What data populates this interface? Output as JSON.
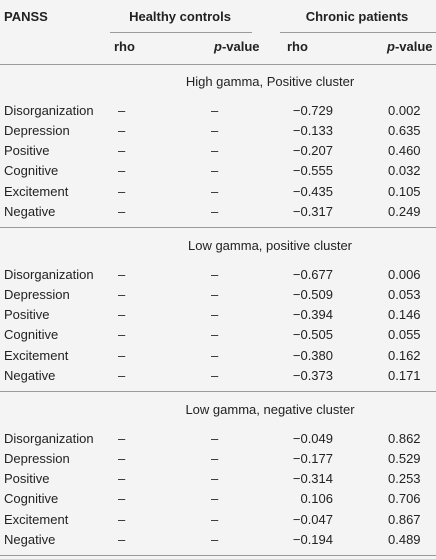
{
  "header": {
    "col0": "PANSS",
    "group1": "Healthy controls",
    "group2": "Chronic patients",
    "rho": "rho",
    "p_value": [
      "p",
      "-value"
    ]
  },
  "sections": [
    {
      "title": "High gamma, Positive cluster",
      "rows": [
        [
          "Disorganization",
          "–",
          "–",
          "−0.729",
          "0.002"
        ],
        [
          "Depression",
          "–",
          "–",
          "−0.133",
          "0.635"
        ],
        [
          "Positive",
          "–",
          "–",
          "−0.207",
          "0.460"
        ],
        [
          "Cognitive",
          "–",
          "–",
          "−0.555",
          "0.032"
        ],
        [
          "Excitement",
          "–",
          "–",
          "−0.435",
          "0.105"
        ],
        [
          "Negative",
          "–",
          "–",
          "−0.317",
          "0.249"
        ]
      ]
    },
    {
      "title": "Low gamma, positive cluster",
      "rows": [
        [
          "Disorganization",
          "–",
          "–",
          "−0.677",
          "0.006"
        ],
        [
          "Depression",
          "–",
          "–",
          "−0.509",
          "0.053"
        ],
        [
          "Positive",
          "–",
          "–",
          "−0.394",
          "0.146"
        ],
        [
          "Cognitive",
          "–",
          "–",
          "−0.505",
          "0.055"
        ],
        [
          "Excitement",
          "–",
          "–",
          "−0.380",
          "0.162"
        ],
        [
          "Negative",
          "–",
          "–",
          "−0.373",
          "0.171"
        ]
      ]
    },
    {
      "title": "Low gamma, negative cluster",
      "rows": [
        [
          "Disorganization",
          "–",
          "–",
          "−0.049",
          "0.862"
        ],
        [
          "Depression",
          "–",
          "–",
          "−0.177",
          "0.529"
        ],
        [
          "Positive",
          "–",
          "–",
          "−0.314",
          "0.253"
        ],
        [
          "Cognitive",
          "–",
          "–",
          "0.106",
          "0.706"
        ],
        [
          "Excitement",
          "–",
          "–",
          "−0.047",
          "0.867"
        ],
        [
          "Negative",
          "–",
          "–",
          "−0.194",
          "0.489"
        ]
      ]
    }
  ]
}
